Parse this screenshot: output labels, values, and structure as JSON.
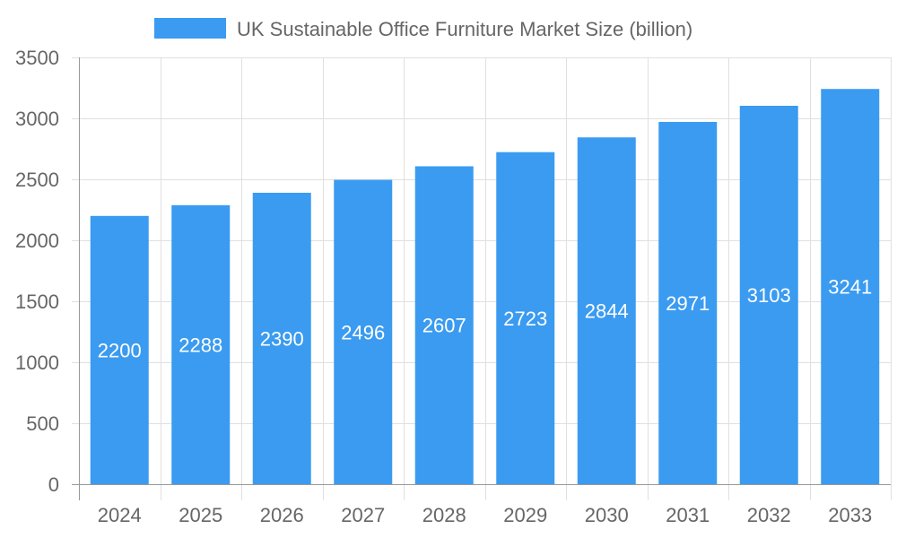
{
  "chart_data": {
    "type": "bar",
    "title": "",
    "xlabel": "",
    "ylabel": "",
    "categories": [
      "2024",
      "2025",
      "2026",
      "2027",
      "2028",
      "2029",
      "2030",
      "2031",
      "2032",
      "2033"
    ],
    "series": [
      {
        "name": "UK Sustainable Office Furniture Market Size (billion)",
        "values": [
          2200,
          2288,
          2390,
          2496,
          2607,
          2723,
          2844,
          2971,
          3103,
          3241
        ],
        "color": "#3a9bf0"
      }
    ],
    "ylim": [
      0,
      3500
    ],
    "yticks": [
      0,
      500,
      1000,
      1500,
      2000,
      2500,
      3000,
      3500
    ],
    "grid": true,
    "legend_position": "top",
    "data_labels": true
  }
}
